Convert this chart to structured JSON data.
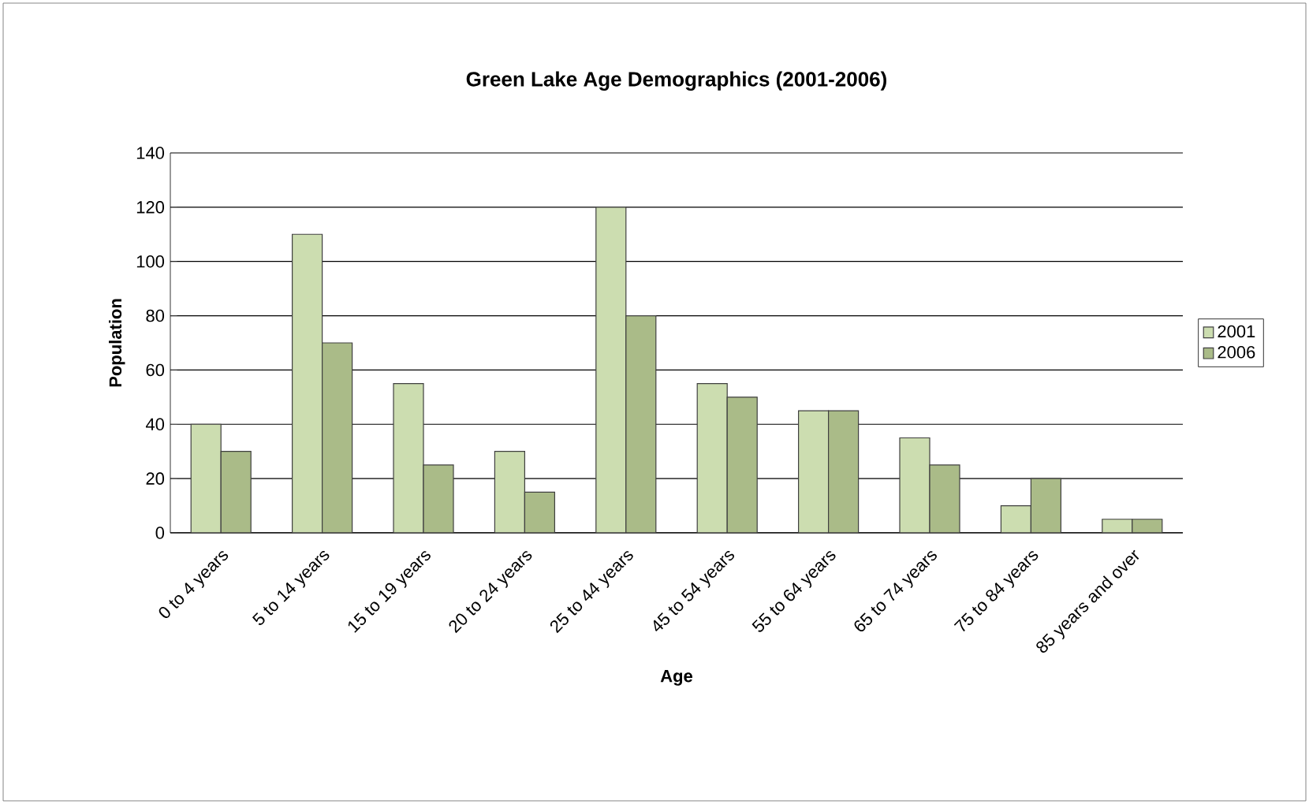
{
  "chart_data": {
    "type": "bar",
    "title": "Green Lake Age Demographics (2001-2006)",
    "xlabel": "Age",
    "ylabel": "Population",
    "categories": [
      "0 to 4 years",
      "5 to 14 years",
      "15 to 19 years",
      "20 to 24 years",
      "25 to 44 years",
      "45 to 54 years",
      "55 to 64 years",
      "65 to 74 years",
      "75 to 84 years",
      "85 years and over"
    ],
    "series": [
      {
        "name": "2001",
        "color": "#ccddb0",
        "values": [
          40,
          110,
          55,
          30,
          120,
          55,
          45,
          35,
          10,
          5
        ]
      },
      {
        "name": "2006",
        "color": "#aabb88",
        "values": [
          30,
          70,
          25,
          15,
          80,
          50,
          45,
          25,
          20,
          5
        ]
      }
    ],
    "ylim": [
      0,
      140
    ],
    "yticks": [
      0,
      20,
      40,
      60,
      80,
      100,
      120,
      140
    ],
    "grid": "y",
    "legend": "right"
  }
}
